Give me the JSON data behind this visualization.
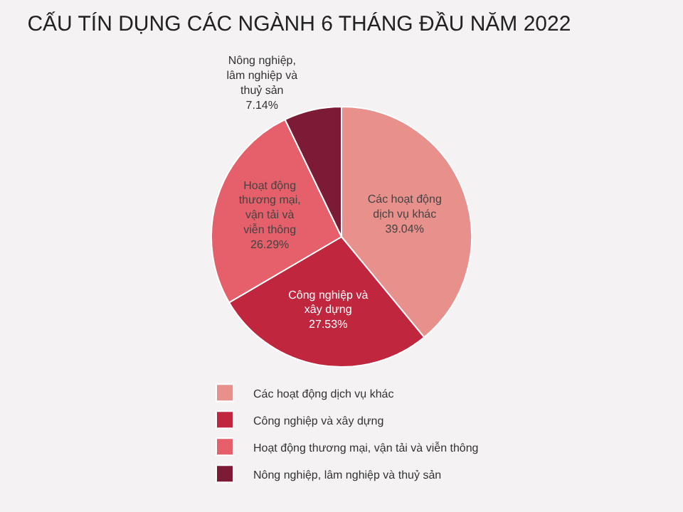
{
  "chart_data": {
    "type": "pie",
    "title": "CẤU TÍN DỤNG CÁC NGÀNH 6 THÁNG ĐẦU NĂM 2022",
    "categories": [
      "Các hoạt động dịch vụ khác",
      "Công nghiệp và xây dựng",
      "Hoạt động thương mại, vận tải và viễn thông",
      "Nông nghiệp, lâm nghiệp và thuỷ sản"
    ],
    "values": [
      39.04,
      27.53,
      26.29,
      7.14
    ],
    "value_labels": [
      "39.04%",
      "27.53%",
      "26.29%",
      "7.14%"
    ],
    "colors": [
      "#e8908c",
      "#c0273f",
      "#e5606a",
      "#7d1a35"
    ],
    "legend": "bottom"
  }
}
